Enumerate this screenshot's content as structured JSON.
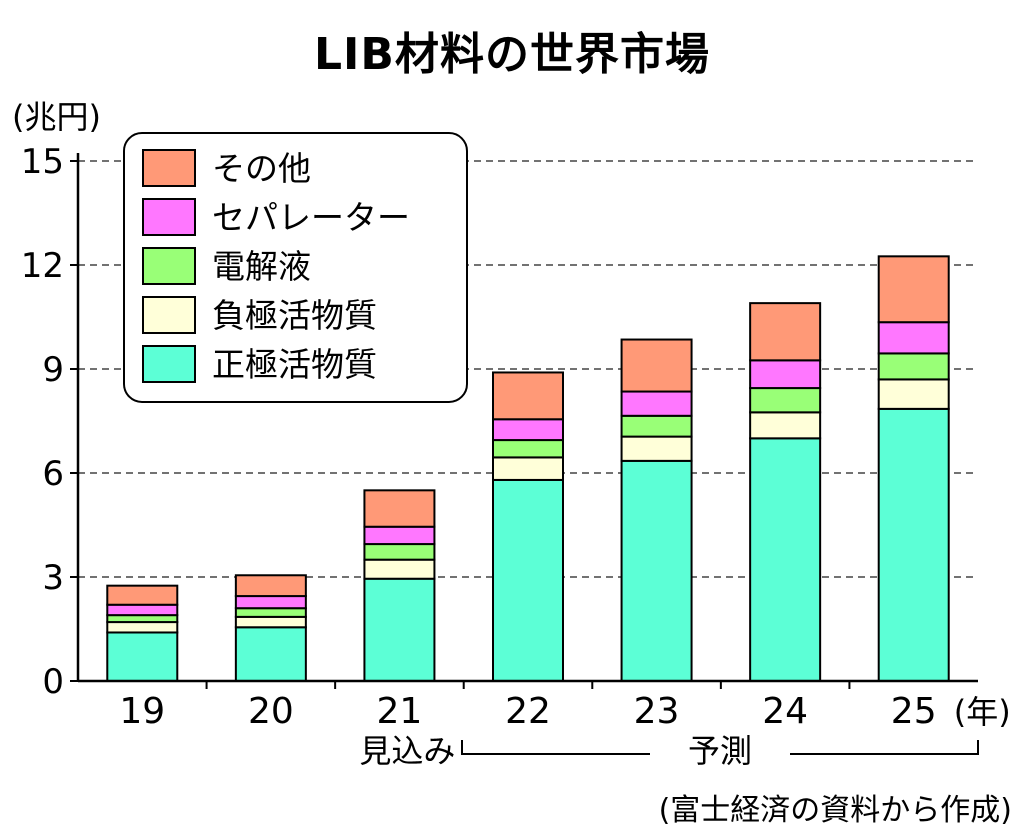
{
  "chart_data": {
    "type": "bar",
    "stacked": true,
    "title": "LIB材料の世界市場",
    "y_unit": "(兆円)",
    "x_unit": "(年)",
    "ylim": [
      0,
      15
    ],
    "yticks": [
      0,
      3,
      6,
      9,
      12,
      15
    ],
    "grid": "dashed horizontal",
    "legend_position": "top-left",
    "categories": [
      "19",
      "20",
      "21",
      "22",
      "23",
      "24",
      "25"
    ],
    "series": [
      {
        "name": "正極活物質",
        "color": "#5cffd6",
        "values": [
          1.4,
          1.55,
          2.95,
          5.8,
          6.35,
          7.0,
          7.85
        ]
      },
      {
        "name": "負極活物質",
        "color": "#ffffd9",
        "values": [
          0.3,
          0.3,
          0.55,
          0.65,
          0.7,
          0.75,
          0.85
        ]
      },
      {
        "name": "電解液",
        "color": "#99ff77",
        "values": [
          0.2,
          0.25,
          0.45,
          0.5,
          0.6,
          0.7,
          0.75
        ]
      },
      {
        "name": "セパレーター",
        "color": "#ff77ff",
        "values": [
          0.3,
          0.35,
          0.5,
          0.6,
          0.7,
          0.8,
          0.9
        ]
      },
      {
        "name": "その他",
        "color": "#ff9977",
        "values": [
          0.55,
          0.6,
          1.05,
          1.35,
          1.5,
          1.65,
          1.9
        ]
      }
    ],
    "annotations": {
      "estimate_label": "見込み",
      "forecast_label": "予測",
      "source": "(富士経済の資料から作成)"
    }
  }
}
